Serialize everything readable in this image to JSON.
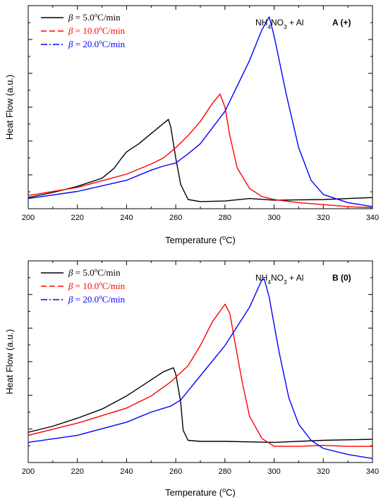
{
  "chart_data": [
    {
      "type": "line",
      "panel_label": "A",
      "panel_mark": "+",
      "sample_label": "NH4NO3 + Al",
      "xlabel": "Temperature (°C)",
      "ylabel": "Heat Flow (a.u.)",
      "xlim": [
        200,
        340
      ],
      "ylim": [
        0,
        10
      ],
      "xticks": [
        "200",
        "220",
        "240",
        "260",
        "280",
        "300",
        "320",
        "340"
      ],
      "grid": false,
      "legend_position": "top-left",
      "series": [
        {
          "name": "β = 5.0°C/min",
          "color": "#000000",
          "dash": "solid",
          "x": [
            200,
            210,
            220,
            230,
            235,
            238,
            240,
            245,
            250,
            254,
            257,
            258,
            260,
            262,
            265,
            270,
            280,
            290,
            300,
            320,
            340
          ],
          "y": [
            0.55,
            0.8,
            1.1,
            1.5,
            2.0,
            2.5,
            2.8,
            3.2,
            3.7,
            4.1,
            4.4,
            4.0,
            2.5,
            1.2,
            0.45,
            0.35,
            0.38,
            0.5,
            0.42,
            0.45,
            0.55
          ]
        },
        {
          "name": "β = 10.0°C/min",
          "color": "#ff0000",
          "dash": "dashed",
          "x": [
            200,
            220,
            240,
            250,
            255,
            260,
            265,
            270,
            275,
            278,
            280,
            282,
            285,
            290,
            295,
            300,
            310,
            320,
            330,
            340
          ],
          "y": [
            0.65,
            1.05,
            1.7,
            2.2,
            2.5,
            3.0,
            3.6,
            4.3,
            5.2,
            5.65,
            5.0,
            3.6,
            2.0,
            1.0,
            0.6,
            0.45,
            0.3,
            0.2,
            0.1,
            0.05
          ]
        },
        {
          "name": "β = 20.0°C/min",
          "color": "#0000ff",
          "dash": "dashdot",
          "x": [
            200,
            220,
            240,
            250,
            255,
            260,
            265,
            270,
            280,
            290,
            295,
            298,
            300,
            305,
            310,
            315,
            320,
            330,
            340
          ],
          "y": [
            0.5,
            0.85,
            1.4,
            1.9,
            2.1,
            2.25,
            2.7,
            3.2,
            4.8,
            7.3,
            8.8,
            9.45,
            8.5,
            5.6,
            3.0,
            1.4,
            0.7,
            0.3,
            0.1
          ]
        }
      ]
    },
    {
      "type": "line",
      "panel_label": "B",
      "panel_mark": "0",
      "sample_label": "NH4NO3 + Al",
      "xlabel": "Temperature (°C)",
      "ylabel": "Heat Flow (a.u.)",
      "xlim": [
        200,
        340
      ],
      "ylim": [
        0,
        10
      ],
      "xticks": [
        "200",
        "220",
        "240",
        "260",
        "280",
        "300",
        "320",
        "340"
      ],
      "grid": false,
      "legend_position": "top-left",
      "series": [
        {
          "name": "β = 5.0°C/min",
          "color": "#000000",
          "dash": "solid",
          "x": [
            200,
            210,
            220,
            230,
            240,
            245,
            250,
            255,
            259,
            260,
            262,
            263,
            265,
            270,
            280,
            300,
            320,
            340
          ],
          "y": [
            1.5,
            1.8,
            2.2,
            2.65,
            3.3,
            3.7,
            4.1,
            4.5,
            4.7,
            4.4,
            3.0,
            1.6,
            1.1,
            1.05,
            1.05,
            1.0,
            1.1,
            1.15
          ]
        },
        {
          "name": "β = 10.0°C/min",
          "color": "#ff0000",
          "dash": "dashed",
          "x": [
            200,
            220,
            240,
            250,
            258,
            265,
            270,
            275,
            280,
            282,
            284,
            287,
            290,
            295,
            300,
            310,
            320,
            330,
            340
          ],
          "y": [
            1.35,
            1.95,
            2.7,
            3.3,
            4.0,
            4.8,
            5.8,
            7.0,
            7.85,
            7.4,
            6.0,
            4.0,
            2.3,
            1.2,
            0.8,
            0.8,
            0.85,
            0.8,
            0.8
          ]
        },
        {
          "name": "β = 20.0°C/min",
          "color": "#0000ff",
          "dash": "dashdot",
          "x": [
            200,
            220,
            240,
            250,
            258,
            262,
            266,
            270,
            280,
            290,
            295,
            296,
            298,
            302,
            306,
            310,
            315,
            320,
            330,
            340
          ],
          "y": [
            1.0,
            1.35,
            2.0,
            2.5,
            2.8,
            3.1,
            3.7,
            4.3,
            5.8,
            7.7,
            9.05,
            9.1,
            8.2,
            5.5,
            3.2,
            1.9,
            1.1,
            0.7,
            0.4,
            0.2
          ]
        }
      ]
    }
  ]
}
